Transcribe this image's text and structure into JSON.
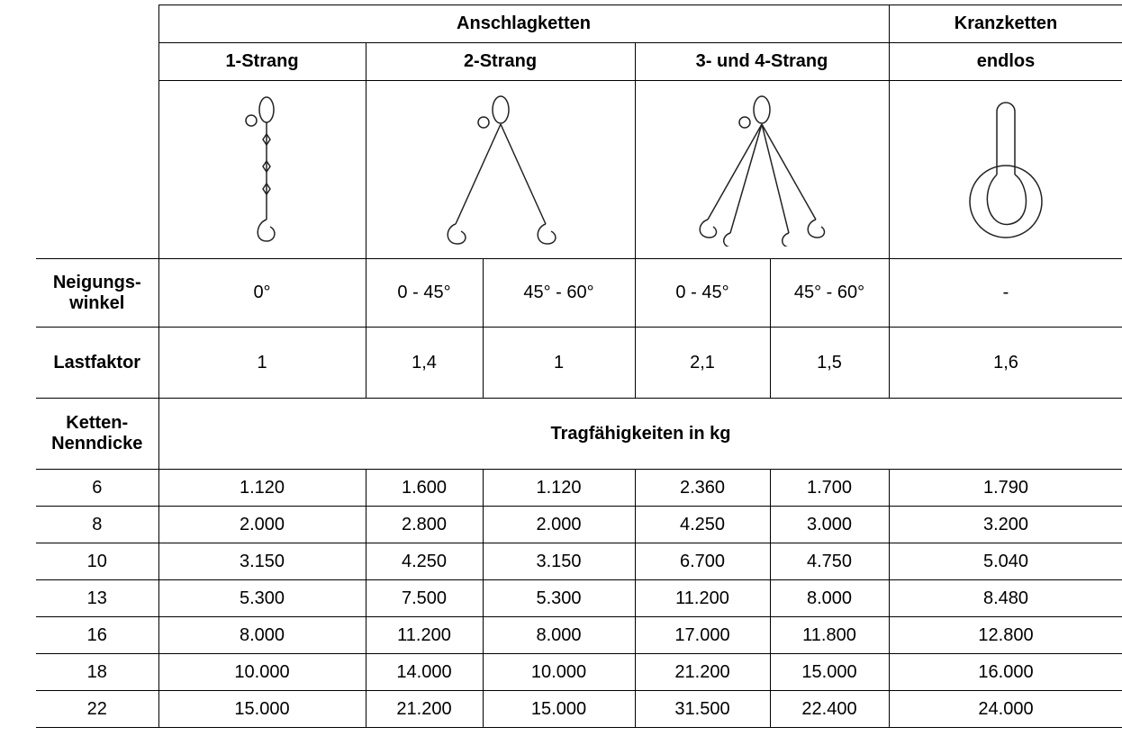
{
  "table": {
    "header": {
      "group_left": "Anschlagketten",
      "group_right": "Kranzketten",
      "strands": [
        "1-Strang",
        "2-Strang",
        "3- und 4-Strang",
        "endlos"
      ]
    },
    "angle_row": {
      "label": [
        "Neigungs-",
        "winkel"
      ],
      "cells": [
        "0°",
        "0 - 45°",
        "45° - 60°",
        "0 - 45°",
        "45° - 60°",
        "-"
      ]
    },
    "factor_row": {
      "label": "Lastfaktor",
      "cells": [
        "1",
        "1,4",
        "1",
        "2,1",
        "1,5",
        "1,6"
      ]
    },
    "capacity_header": {
      "label": [
        "Ketten-",
        "Nenndicke"
      ],
      "title": "Tragfähigkeiten in kg"
    },
    "rows": [
      [
        "6",
        "1.120",
        "1.600",
        "1.120",
        "2.360",
        "1.700",
        "1.790"
      ],
      [
        "8",
        "2.000",
        "2.800",
        "2.000",
        "4.250",
        "3.000",
        "3.200"
      ],
      [
        "10",
        "3.150",
        "4.250",
        "3.150",
        "6.700",
        "4.750",
        "5.040"
      ],
      [
        "13",
        "5.300",
        "7.500",
        "5.300",
        "11.200",
        "8.000",
        "8.480"
      ],
      [
        "16",
        "8.000",
        "11.200",
        "8.000",
        "17.000",
        "11.800",
        "12.800"
      ],
      [
        "18",
        "10.000",
        "14.000",
        "10.000",
        "21.200",
        "15.000",
        "16.000"
      ],
      [
        "22",
        "15.000",
        "21.200",
        "15.000",
        "31.500",
        "22.400",
        "24.000"
      ]
    ]
  }
}
